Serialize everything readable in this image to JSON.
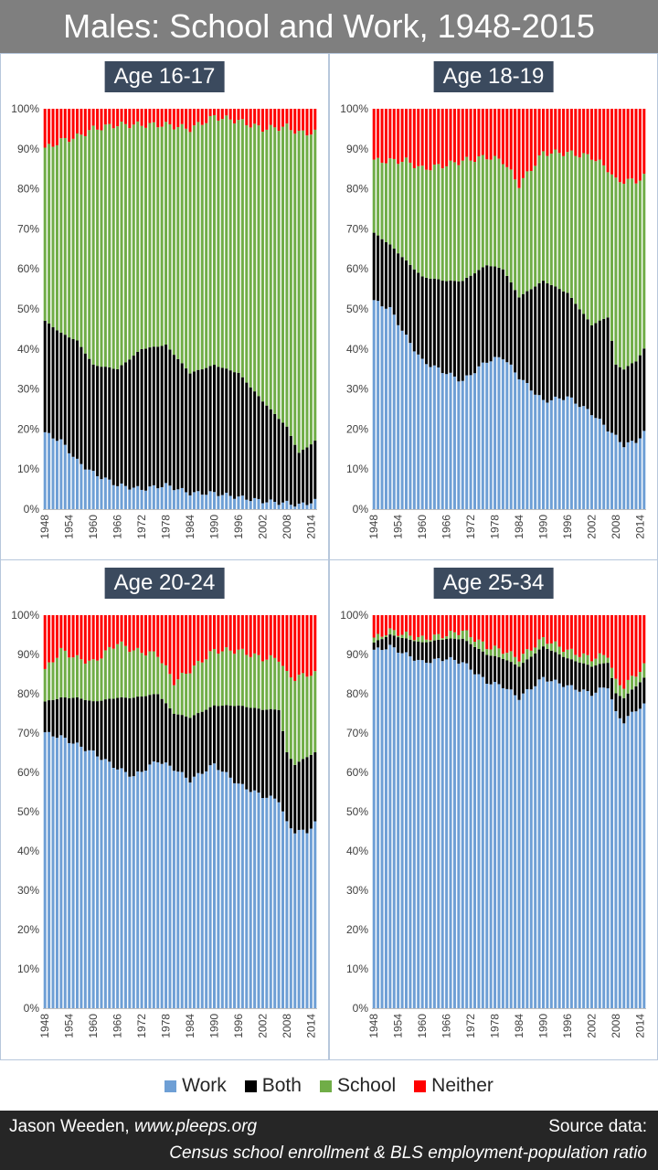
{
  "title": "Males: School and Work, 1948-2015",
  "legend": [
    {
      "label": "Work",
      "color": "#6e9fd5"
    },
    {
      "label": "Both",
      "color": "#000000"
    },
    {
      "label": "School",
      "color": "#70ad47"
    },
    {
      "label": "Neither",
      "color": "#ff0000"
    }
  ],
  "footer": {
    "author": "Jason Weeden, ",
    "site": "www.pleeps.org",
    "source_label": "Source data:",
    "source_text": "Census school enrollment & BLS employment-population ratio"
  },
  "chart_data": [
    {
      "type": "bar",
      "stacked": true,
      "title": "Age 16-17",
      "ylim": [
        0,
        100
      ],
      "y_ticks": [
        "0%",
        "10%",
        "20%",
        "30%",
        "40%",
        "50%",
        "60%",
        "70%",
        "80%",
        "90%",
        "100%"
      ],
      "x_ticks": [
        "1948",
        "1954",
        "1960",
        "1966",
        "1972",
        "1978",
        "1984",
        "1990",
        "1996",
        "2002",
        "2008",
        "2014"
      ],
      "x_start": 1948,
      "x_end": 2015,
      "anchors": {
        "years": [
          1948,
          1952,
          1956,
          1960,
          1966,
          1972,
          1978,
          1984,
          1990,
          1996,
          2002,
          2008,
          2011,
          2015
        ],
        "work": [
          19,
          17,
          12,
          9,
          6,
          5,
          6,
          4,
          4,
          3,
          2,
          1.5,
          1,
          2
        ],
        "both": [
          28,
          27,
          30,
          27,
          29,
          35,
          35,
          30,
          32,
          31,
          25,
          19,
          13,
          15
        ],
        "school": [
          43,
          48,
          51,
          59,
          61,
          56,
          55,
          61,
          62,
          63,
          68,
          75,
          80,
          77
        ]
      }
    },
    {
      "type": "bar",
      "stacked": true,
      "title": "Age 18-19",
      "ylim": [
        0,
        100
      ],
      "y_ticks": [
        "0%",
        "10%",
        "20%",
        "30%",
        "40%",
        "50%",
        "60%",
        "70%",
        "80%",
        "90%",
        "100%"
      ],
      "x_ticks": [
        "1948",
        "1954",
        "1960",
        "1966",
        "1972",
        "1978",
        "1984",
        "1990",
        "1996",
        "2002",
        "2008",
        "2014"
      ],
      "x_start": 1948,
      "x_end": 2015,
      "anchors": {
        "years": [
          1948,
          1952,
          1956,
          1960,
          1966,
          1970,
          1976,
          1980,
          1984,
          1990,
          1996,
          2002,
          2006,
          2008,
          2010,
          2013,
          2015
        ],
        "work": [
          52,
          50,
          43,
          37,
          34,
          32,
          37,
          38,
          33,
          27,
          28,
          24,
          20,
          18,
          16,
          17,
          19
        ],
        "both": [
          17,
          16,
          19,
          21,
          23,
          25,
          24,
          22,
          20,
          30,
          26,
          22,
          28,
          18,
          19,
          20,
          21
        ],
        "school": [
          18,
          21,
          25,
          27,
          29,
          30,
          27,
          27,
          28,
          32,
          35,
          42,
          37,
          46,
          47,
          45,
          43
        ]
      }
    },
    {
      "type": "bar",
      "stacked": true,
      "title": "Age 20-24",
      "ylim": [
        0,
        100
      ],
      "y_ticks": [
        "0%",
        "10%",
        "20%",
        "30%",
        "40%",
        "50%",
        "60%",
        "70%",
        "80%",
        "90%",
        "100%"
      ],
      "x_ticks": [
        "1948",
        "1954",
        "1960",
        "1966",
        "1972",
        "1978",
        "1984",
        "1990",
        "1996",
        "2002",
        "2008",
        "2014"
      ],
      "x_start": 1948,
      "x_end": 2015,
      "anchors": {
        "years": [
          1948,
          1952,
          1956,
          1960,
          1966,
          1970,
          1976,
          1980,
          1984,
          1990,
          1996,
          2002,
          2006,
          2008,
          2010,
          2013,
          2015
        ],
        "work": [
          70,
          69,
          67,
          65,
          61,
          59,
          63,
          61,
          58,
          62,
          57,
          54,
          53,
          47,
          45,
          45,
          47
        ],
        "both": [
          8,
          10,
          12,
          13,
          18,
          20,
          17,
          14,
          16,
          15,
          20,
          22,
          23,
          18,
          17,
          19,
          18
        ],
        "school": [
          8,
          12,
          10,
          10,
          14,
          12,
          10,
          8,
          12,
          14,
          14,
          13,
          13,
          20,
          22,
          21,
          20
        ]
      }
    },
    {
      "type": "bar",
      "stacked": true,
      "title": "Age 25-34",
      "ylim": [
        0,
        100
      ],
      "y_ticks": [
        "0%",
        "10%",
        "20%",
        "30%",
        "40%",
        "50%",
        "60%",
        "70%",
        "80%",
        "90%",
        "100%"
      ],
      "x_ticks": [
        "1948",
        "1954",
        "1960",
        "1966",
        "1972",
        "1978",
        "1984",
        "1990",
        "1996",
        "2002",
        "2008",
        "2014"
      ],
      "x_start": 1948,
      "x_end": 2015,
      "anchors": {
        "years": [
          1948,
          1952,
          1956,
          1960,
          1966,
          1970,
          1976,
          1980,
          1984,
          1990,
          1996,
          2002,
          2006,
          2008,
          2010,
          2013,
          2015
        ],
        "work": [
          91,
          92,
          90,
          88,
          89,
          88,
          83,
          82,
          79,
          84,
          82,
          80,
          82,
          75,
          73,
          76,
          77
        ],
        "both": [
          2,
          3,
          4,
          5,
          5,
          6,
          7,
          7,
          8,
          8,
          7,
          7,
          6,
          5,
          6,
          6,
          7
        ],
        "school": [
          1,
          1,
          1,
          1,
          1,
          2,
          2,
          2,
          2,
          2,
          2,
          2,
          2,
          3,
          3,
          3,
          3
        ]
      }
    }
  ]
}
